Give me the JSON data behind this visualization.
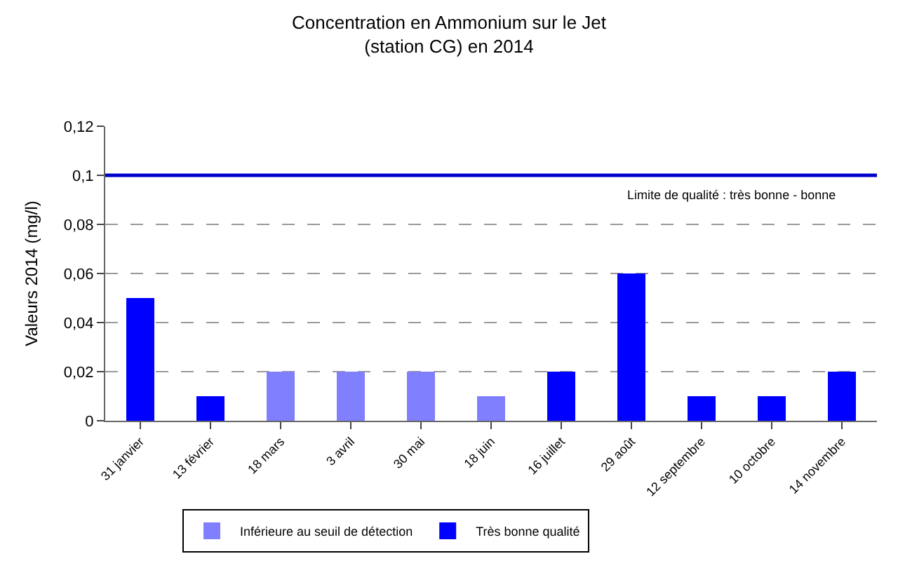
{
  "chart_data": {
    "type": "bar",
    "title": "Concentration en Ammonium sur le Jet\n(station CG) en 2014",
    "ylabel": "Valeurs 2014 (mg/l)",
    "categories": [
      "31 janvier",
      "13 février",
      "18 mars",
      "3 avril",
      "30 mai",
      "18 juin",
      "16 juillet",
      "29 août",
      "12 septembre",
      "10 octobre",
      "14 novembre"
    ],
    "series": [
      {
        "name": "Inférieure au seuil de détection",
        "color": "#8080ff",
        "values": [
          null,
          null,
          0.02,
          0.02,
          0.02,
          0.01,
          null,
          null,
          null,
          null,
          null
        ]
      },
      {
        "name": "Très bonne qualité",
        "color": "#0000ff",
        "values": [
          0.05,
          0.01,
          null,
          null,
          null,
          null,
          0.02,
          0.06,
          0.01,
          0.01,
          0.02
        ]
      }
    ],
    "ylim": [
      0,
      0.12
    ],
    "yticks": [
      {
        "value": 0,
        "label": "0"
      },
      {
        "value": 0.02,
        "label": "0,02"
      },
      {
        "value": 0.04,
        "label": "0,04"
      },
      {
        "value": 0.06,
        "label": "0,06"
      },
      {
        "value": 0.08,
        "label": "0,08"
      },
      {
        "value": 0.1,
        "label": "0,1"
      },
      {
        "value": 0.12,
        "label": "0,12"
      }
    ],
    "ref_lines": [
      {
        "axis": "y",
        "value": 0.1,
        "label": "Limite de qualité : très bonne - bonne",
        "color": "#0000cc"
      }
    ],
    "grid": "y",
    "legend": "bottom"
  }
}
